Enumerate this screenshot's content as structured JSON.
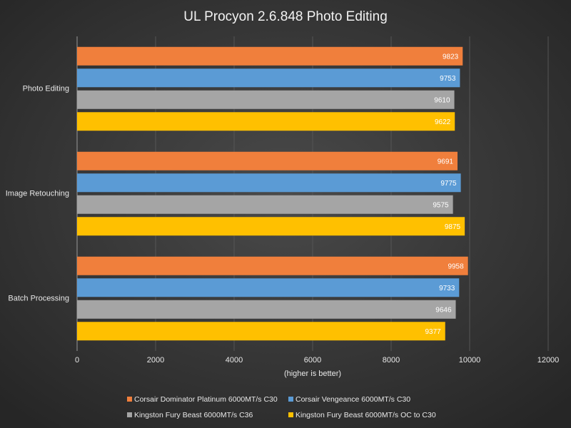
{
  "chart_data": {
    "type": "bar",
    "orientation": "horizontal",
    "title": "UL Procyon  2.6.848  Photo Editing",
    "xlabel": "(higher is better)",
    "categories": [
      "Photo Editing",
      "Image Retouching",
      "Batch Processing"
    ],
    "series": [
      {
        "name": "Corsair Dominator Platinum 6000MT/s C30",
        "color": "#f07f3c",
        "values": [
          9823,
          9691,
          9958
        ]
      },
      {
        "name": "Corsair Vengeance 6000MT/s C30",
        "color": "#5b9bd5",
        "values": [
          9753,
          9775,
          9733
        ]
      },
      {
        "name": "Kingston Fury Beast 6000MT/s C36",
        "color": "#a5a5a5",
        "values": [
          9610,
          9575,
          9646
        ]
      },
      {
        "name": "Kingston Fury Beast 6000MT/s OC to C30",
        "color": "#ffc000",
        "values": [
          9622,
          9875,
          9377
        ]
      }
    ],
    "xlim": [
      0,
      12000
    ],
    "xticks": [
      0,
      2000,
      4000,
      6000,
      8000,
      10000,
      12000
    ],
    "grid": true
  }
}
